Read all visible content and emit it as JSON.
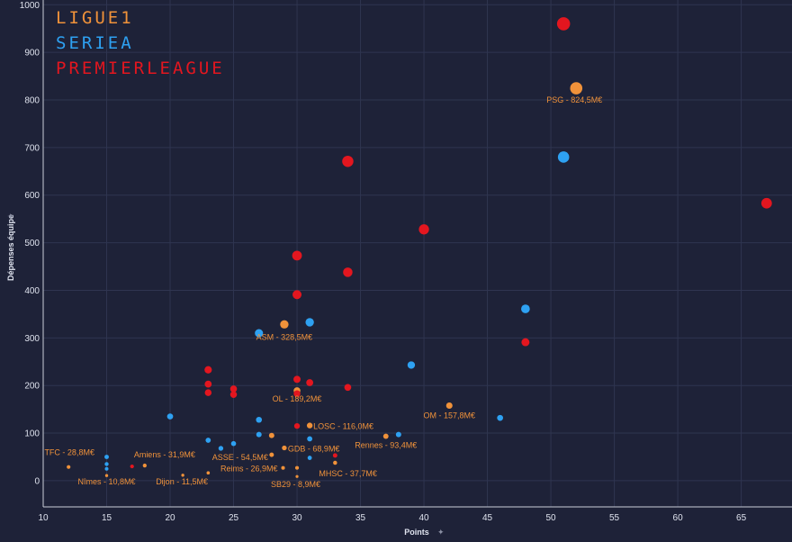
{
  "chart_data": {
    "type": "scatter",
    "xlabel": "Points",
    "ylabel": "Dépenses équipe",
    "xlim": [
      10,
      69
    ],
    "ylim": [
      -55,
      1010
    ],
    "xticks": [
      10,
      15,
      20,
      25,
      30,
      35,
      40,
      45,
      50,
      55,
      60,
      65
    ],
    "yticks": [
      0,
      100,
      200,
      300,
      400,
      500,
      600,
      700,
      800,
      900,
      1000
    ],
    "grid": true,
    "legend_position": "top-left",
    "colors": {
      "Ligue 1": "#f0923a",
      "Serie A": "#2ea1f2",
      "Premier League": "#e3161f"
    },
    "legend_labels": [
      "LIGUE1",
      "SERIEA",
      "PREMIERLEAGUE"
    ],
    "series": [
      {
        "name": "Ligue 1",
        "points": [
          {
            "x": 52,
            "y": 824.5,
            "label": "PSG - 824,5M€"
          },
          {
            "x": 29,
            "y": 328.5,
            "label": "ASM - 328,5M€"
          },
          {
            "x": 30,
            "y": 189.2,
            "label": "OL - 189,2M€"
          },
          {
            "x": 42,
            "y": 157.8,
            "label": "OM - 157,8M€"
          },
          {
            "x": 31,
            "y": 116.0,
            "label": "LOSC - 116,0M€"
          },
          {
            "x": 37,
            "y": 93.4,
            "label": "Rennes - 93,4M€"
          },
          {
            "x": 29,
            "y": 68.9,
            "label": "GDB - 68,9M€"
          },
          {
            "x": 28,
            "y": 54.5,
            "label": "ASSE - 54,5M€"
          },
          {
            "x": 33,
            "y": 37.7,
            "label": "MHSC - 37,7M€"
          },
          {
            "x": 18,
            "y": 31.9,
            "label": "Amiens - 31,9M€"
          },
          {
            "x": 12,
            "y": 28.8,
            "label": "TFC - 28,8M€"
          },
          {
            "x": 28.9,
            "y": 26.9,
            "label": "Reims - 26,9M€"
          },
          {
            "x": 23,
            "y": 16.5,
            "label": ""
          },
          {
            "x": 21,
            "y": 11.5,
            "label": "Dijon - 11,5M€"
          },
          {
            "x": 15,
            "y": 10.8,
            "label": "Nîmes - 10,8M€"
          },
          {
            "x": 30,
            "y": 8.9,
            "label": "SB29 - 8,9M€"
          },
          {
            "x": 28,
            "y": 95,
            "label": ""
          },
          {
            "x": 30,
            "y": 27,
            "label": ""
          }
        ]
      },
      {
        "name": "Serie A",
        "points": [
          {
            "x": 51,
            "y": 680,
            "label": ""
          },
          {
            "x": 48,
            "y": 361,
            "label": ""
          },
          {
            "x": 31,
            "y": 333,
            "label": ""
          },
          {
            "x": 27,
            "y": 310,
            "label": ""
          },
          {
            "x": 39,
            "y": 243,
            "label": ""
          },
          {
            "x": 20,
            "y": 135,
            "label": ""
          },
          {
            "x": 46,
            "y": 132,
            "label": ""
          },
          {
            "x": 27,
            "y": 128,
            "label": ""
          },
          {
            "x": 27,
            "y": 97,
            "label": ""
          },
          {
            "x": 38,
            "y": 97,
            "label": ""
          },
          {
            "x": 31,
            "y": 88,
            "label": ""
          },
          {
            "x": 23,
            "y": 85,
            "label": ""
          },
          {
            "x": 25,
            "y": 78,
            "label": ""
          },
          {
            "x": 24,
            "y": 68,
            "label": ""
          },
          {
            "x": 15,
            "y": 50,
            "label": ""
          },
          {
            "x": 31,
            "y": 48,
            "label": ""
          },
          {
            "x": 15,
            "y": 35,
            "label": ""
          },
          {
            "x": 15,
            "y": 25,
            "label": ""
          }
        ]
      },
      {
        "name": "Premier League",
        "points": [
          {
            "x": 51,
            "y": 960,
            "label": ""
          },
          {
            "x": 34,
            "y": 671,
            "label": ""
          },
          {
            "x": 67,
            "y": 583,
            "label": ""
          },
          {
            "x": 40,
            "y": 528,
            "label": ""
          },
          {
            "x": 30,
            "y": 473,
            "label": ""
          },
          {
            "x": 34,
            "y": 438,
            "label": ""
          },
          {
            "x": 30,
            "y": 391,
            "label": ""
          },
          {
            "x": 48,
            "y": 291,
            "label": ""
          },
          {
            "x": 23,
            "y": 233,
            "label": ""
          },
          {
            "x": 30,
            "y": 213,
            "label": ""
          },
          {
            "x": 31,
            "y": 206,
            "label": ""
          },
          {
            "x": 23,
            "y": 203,
            "label": ""
          },
          {
            "x": 34,
            "y": 196,
            "label": ""
          },
          {
            "x": 25,
            "y": 193,
            "label": ""
          },
          {
            "x": 23,
            "y": 185,
            "label": ""
          },
          {
            "x": 30,
            "y": 183,
            "label": ""
          },
          {
            "x": 25,
            "y": 181,
            "label": ""
          },
          {
            "x": 30,
            "y": 115,
            "label": ""
          },
          {
            "x": 33,
            "y": 53,
            "label": ""
          },
          {
            "x": 17,
            "y": 30,
            "label": ""
          }
        ]
      }
    ]
  }
}
